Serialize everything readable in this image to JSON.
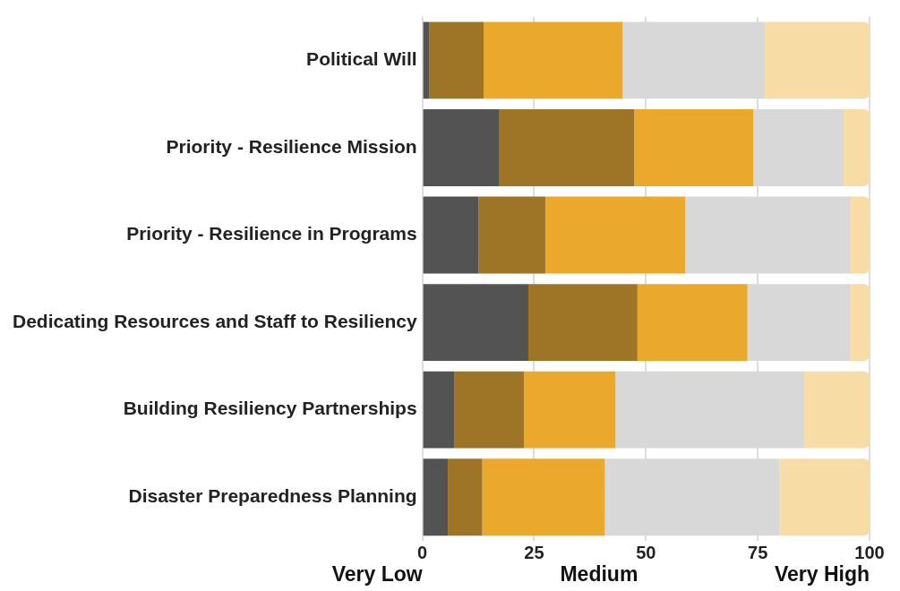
{
  "chart_data": {
    "type": "bar",
    "orientation": "horizontal",
    "stacked": true,
    "categories": [
      "Political Will",
      "Priority - Resilience Mission",
      "Priority - Resilience in Programs",
      "Dedicating Resources and Staff to Resiliency",
      "Building Resiliency Partnerships",
      "Disaster Preparedness Planning"
    ],
    "series": [
      {
        "color": "#535353",
        "values": [
          1.5,
          17.1,
          12.6,
          23.7,
          7.1,
          5.7
        ]
      },
      {
        "color": "#9e7527",
        "values": [
          12.2,
          30.3,
          14.9,
          24.4,
          15.6,
          7.7
        ]
      },
      {
        "color": "#eaa82c",
        "values": [
          31.1,
          26.6,
          31.3,
          24.6,
          20.5,
          27.4
        ]
      },
      {
        "color": "#d8d8d8",
        "values": [
          31.8,
          20.2,
          36.8,
          22.9,
          42.2,
          39.1
        ]
      },
      {
        "color": "#f7dca6",
        "values": [
          23.4,
          5.8,
          4.4,
          4.4,
          14.6,
          20.1
        ]
      }
    ],
    "xlim": [
      0,
      100
    ],
    "xticks": [
      0,
      25,
      50,
      75,
      100
    ],
    "grid": "x",
    "annotations": [
      "Very Low",
      "Medium",
      "Very High"
    ]
  }
}
